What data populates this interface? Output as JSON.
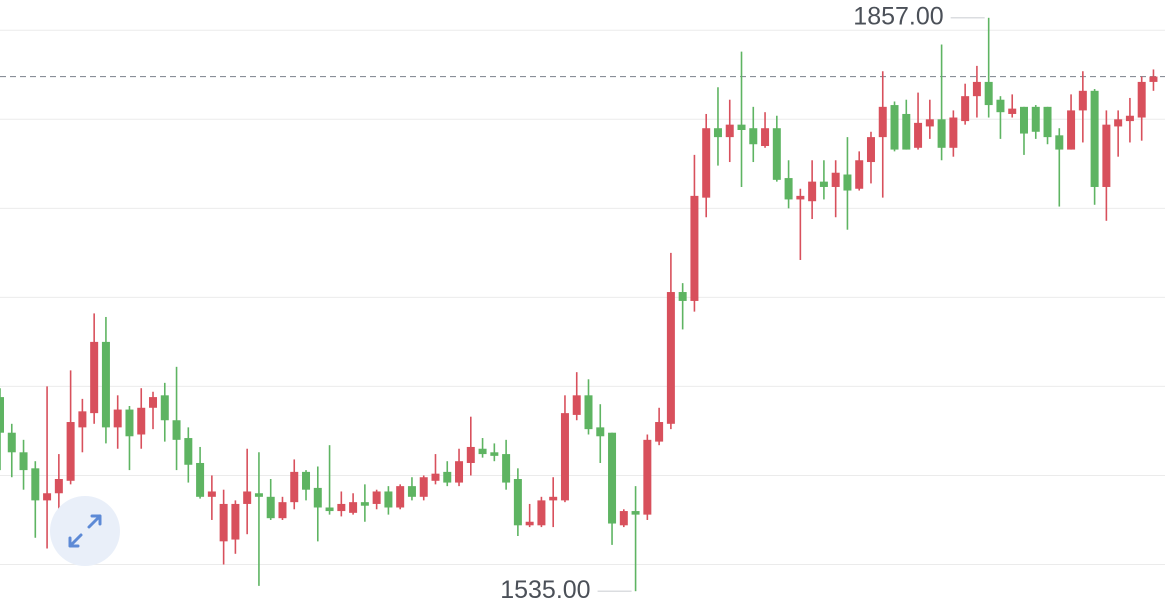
{
  "chart_data": {
    "type": "candlestick",
    "open": [
      1644,
      1624,
      1613,
      1604,
      1586,
      1590,
      1597,
      1627,
      1635,
      1675,
      1627,
      1637,
      1623,
      1638,
      1645,
      1631,
      1621,
      1607,
      1588,
      1563,
      1564,
      1584,
      1590,
      1588,
      1576,
      1585,
      1602,
      1593,
      1582,
      1580,
      1579,
      1585,
      1584,
      1591,
      1582,
      1594,
      1588,
      1597,
      1602,
      1596,
      1607,
      1615,
      1613,
      1612,
      1598,
      1572,
      1572,
      1586,
      1586,
      1634,
      1645,
      1627,
      1624,
      1572,
      1580,
      1578,
      1619,
      1629,
      1703,
      1698,
      1756,
      1795,
      1790,
      1797,
      1795,
      1785,
      1795,
      1767,
      1755,
      1754,
      1765,
      1762,
      1769,
      1761,
      1776,
      1790,
      1808,
      1803,
      1784,
      1796,
      1800,
      1784,
      1799,
      1813,
      1821,
      1811,
      1803,
      1807,
      1807,
      1807,
      1791,
      1783,
      1805,
      1816,
      1762,
      1796,
      1799,
      1801,
      1821
    ],
    "high": [
      1649,
      1629,
      1620,
      1608,
      1650,
      1612,
      1659,
      1643,
      1691,
      1689,
      1645,
      1639,
      1649,
      1647,
      1652,
      1661,
      1627,
      1616,
      1600,
      1592,
      1586,
      1615,
      1613,
      1598,
      1588,
      1609,
      1603,
      1605,
      1617,
      1591,
      1590,
      1595,
      1592,
      1594,
      1595,
      1599,
      1600,
      1612,
      1608,
      1615,
      1633,
      1621,
      1618,
      1620,
      1604,
      1584,
      1588,
      1599,
      1645,
      1658,
      1654,
      1640,
      1624,
      1581,
      1594,
      1623,
      1638,
      1725,
      1708,
      1780,
      1803,
      1818,
      1811,
      1838,
      1807,
      1804,
      1802,
      1777,
      1761,
      1777,
      1777,
      1777,
      1790,
      1782,
      1793,
      1827,
      1810,
      1811,
      1815,
      1811,
      1842,
      1805,
      1820,
      1830,
      1857,
      1813,
      1814,
      1807,
      1808,
      1807,
      1795,
      1814,
      1827,
      1817,
      1805,
      1805,
      1812,
      1824,
      1828
    ],
    "low": [
      1603,
      1599,
      1592,
      1565,
      1559,
      1571,
      1595,
      1613,
      1629,
      1618,
      1615,
      1603,
      1615,
      1626,
      1619,
      1603,
      1596,
      1587,
      1575,
      1550,
      1556,
      1567,
      1538,
      1575,
      1575,
      1581,
      1586,
      1563,
      1578,
      1577,
      1578,
      1574,
      1581,
      1578,
      1581,
      1586,
      1586,
      1595,
      1594,
      1594,
      1600,
      1610,
      1608,
      1592,
      1566,
      1571,
      1571,
      1571,
      1585,
      1631,
      1623,
      1607,
      1561,
      1571,
      1535,
      1575,
      1617,
      1626,
      1682,
      1692,
      1745,
      1774,
      1776,
      1762,
      1776,
      1784,
      1765,
      1750,
      1721,
      1744,
      1755,
      1745,
      1738,
      1760,
      1764,
      1756,
      1782,
      1783,
      1783,
      1789,
      1777,
      1779,
      1797,
      1801,
      1801,
      1789,
      1801,
      1780,
      1789,
      1786,
      1751,
      1783,
      1787,
      1752,
      1743,
      1779,
      1787,
      1788,
      1816
    ],
    "close": [
      1624,
      1613,
      1603,
      1586,
      1590,
      1598,
      1630,
      1636,
      1675,
      1627,
      1637,
      1622,
      1638,
      1644,
      1631,
      1620,
      1606,
      1588,
      1591,
      1584,
      1584,
      1591,
      1588,
      1576,
      1585,
      1602,
      1592,
      1582,
      1580,
      1584,
      1585,
      1583,
      1591,
      1582,
      1594,
      1588,
      1599,
      1601,
      1596,
      1608,
      1616,
      1612,
      1611,
      1596,
      1572,
      1574,
      1586,
      1588,
      1635,
      1645,
      1626,
      1622,
      1573,
      1580,
      1578,
      1620,
      1630,
      1703,
      1698,
      1757,
      1795,
      1790,
      1797,
      1794,
      1786,
      1795,
      1766,
      1755,
      1757,
      1765,
      1762,
      1770,
      1760,
      1777,
      1790,
      1807,
      1783,
      1783,
      1798,
      1800,
      1784,
      1801,
      1813,
      1821,
      1808,
      1804,
      1806,
      1792,
      1793,
      1790,
      1783,
      1805,
      1816,
      1762,
      1797,
      1800,
      1802,
      1821,
      1824
    ],
    "up_color": "#d8505c",
    "down_color": "#5eb462",
    "ylim": [
      1525,
      1867
    ],
    "yticks": [
      1550,
      1600,
      1650,
      1700,
      1750,
      1800,
      1850
    ],
    "grid": true,
    "annotations": [
      {
        "value": 1857,
        "label": "1857.00"
      },
      {
        "value": 1535,
        "label": "1535.00"
      }
    ]
  }
}
